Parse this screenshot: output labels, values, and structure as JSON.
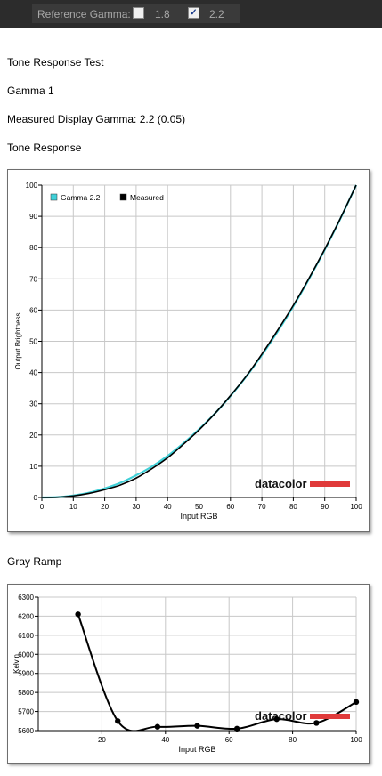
{
  "toolbar": {
    "reference_gamma_label": "Reference Gamma:",
    "option_1_8": {
      "label": "1.8",
      "checked": false
    },
    "option_2_2": {
      "label": "2.2",
      "checked": true
    }
  },
  "report": {
    "title": "Tone Response Test",
    "subtitle": "Gamma 1",
    "measured_gamma": "Measured Display Gamma: 2.2 (0.05)",
    "tone_heading": "Tone Response",
    "gray_heading": "Gray Ramp"
  },
  "brand": "datacolor",
  "colors": {
    "gamma_ref": "#40d0d8",
    "measured": "#000000",
    "brand_bar": "#e03a3a",
    "grid": "#c8c8c8"
  },
  "chart_data": [
    {
      "type": "line",
      "title": "",
      "xlabel": "Input RGB",
      "ylabel": "Output Brightness",
      "xlim": [
        0,
        100
      ],
      "ylim": [
        0,
        100
      ],
      "xticks": [
        0,
        10,
        20,
        30,
        40,
        50,
        60,
        70,
        80,
        90,
        100
      ],
      "yticks": [
        0,
        10,
        20,
        30,
        40,
        50,
        60,
        70,
        80,
        90,
        100
      ],
      "grid": true,
      "legend": "top-left",
      "series": [
        {
          "name": "Gamma 2.2",
          "x": [
            0,
            5,
            10,
            15,
            20,
            25,
            30,
            35,
            40,
            45,
            50,
            55,
            60,
            65,
            70,
            75,
            80,
            85,
            90,
            95,
            100
          ],
          "y": [
            0,
            0.1,
            0.6,
            1.5,
            2.9,
            4.7,
            7.1,
            9.9,
            13.3,
            17.3,
            21.8,
            26.8,
            32.5,
            38.7,
            45.6,
            53.1,
            61.2,
            70.0,
            79.3,
            89.3,
            100
          ]
        },
        {
          "name": "Measured",
          "x": [
            0,
            5,
            10,
            15,
            20,
            25,
            30,
            35,
            40,
            45,
            50,
            55,
            60,
            65,
            70,
            75,
            80,
            85,
            90,
            95,
            100
          ],
          "y": [
            0,
            0.1,
            0.5,
            1.3,
            2.5,
            4.0,
            6.2,
            9.2,
            12.7,
            17.0,
            21.6,
            26.8,
            32.6,
            38.8,
            45.9,
            53.5,
            61.5,
            70.2,
            79.5,
            89.4,
            100
          ]
        }
      ]
    },
    {
      "type": "line",
      "title": "",
      "xlabel": "Input RGB",
      "ylabel": "Kelvin",
      "xlim": [
        0,
        100
      ],
      "ylim": [
        5600,
        6300
      ],
      "xticks": [
        20,
        40,
        60,
        80,
        100
      ],
      "yticks": [
        5600,
        5700,
        5800,
        5900,
        6000,
        6100,
        6200,
        6300
      ],
      "grid": true,
      "series": [
        {
          "name": "",
          "x": [
            12.5,
            25,
            37.5,
            50,
            62.5,
            75,
            87.5,
            100
          ],
          "y": [
            6210,
            5650,
            5620,
            5625,
            5610,
            5660,
            5640,
            5750
          ]
        }
      ]
    }
  ]
}
